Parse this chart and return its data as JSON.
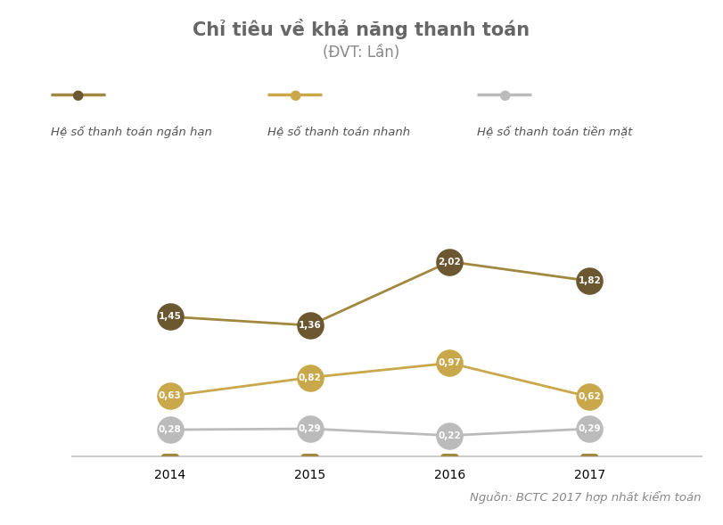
{
  "title": "Chỉ tiêu về khả năng thanh toán",
  "subtitle": "(ĐVT: Lần)",
  "years": [
    2014,
    2015,
    2016,
    2017
  ],
  "series": [
    {
      "name": "Hệ số thanh toán ngắn hạn",
      "values": [
        1.45,
        1.36,
        2.02,
        1.82
      ],
      "line_color": "#A08840",
      "marker_color": "#6B5830",
      "marker_size": 22
    },
    {
      "name": "Hệ số thanh toán nhanh",
      "values": [
        0.63,
        0.82,
        0.97,
        0.62
      ],
      "line_color": "#C9A84C",
      "marker_color": "#C9A84C",
      "marker_size": 22
    },
    {
      "name": "Hệ số thanh toán tiền mặt",
      "values": [
        0.28,
        0.29,
        0.22,
        0.29
      ],
      "line_color": "#BBBBBB",
      "marker_color": "#BBBBBB",
      "marker_size": 22
    }
  ],
  "source_text": "Nguồn: BCTC 2017 hợp nhất kiểm toán",
  "background_color": "#FFFFFF",
  "title_color": "#666666",
  "subtitle_color": "#888888",
  "axis_line_color": "#CCCCCC",
  "tick_highlight_color": "#A08840",
  "ylim": [
    0.0,
    2.5
  ],
  "figsize": [
    8.11,
    5.89
  ],
  "dpi": 100
}
